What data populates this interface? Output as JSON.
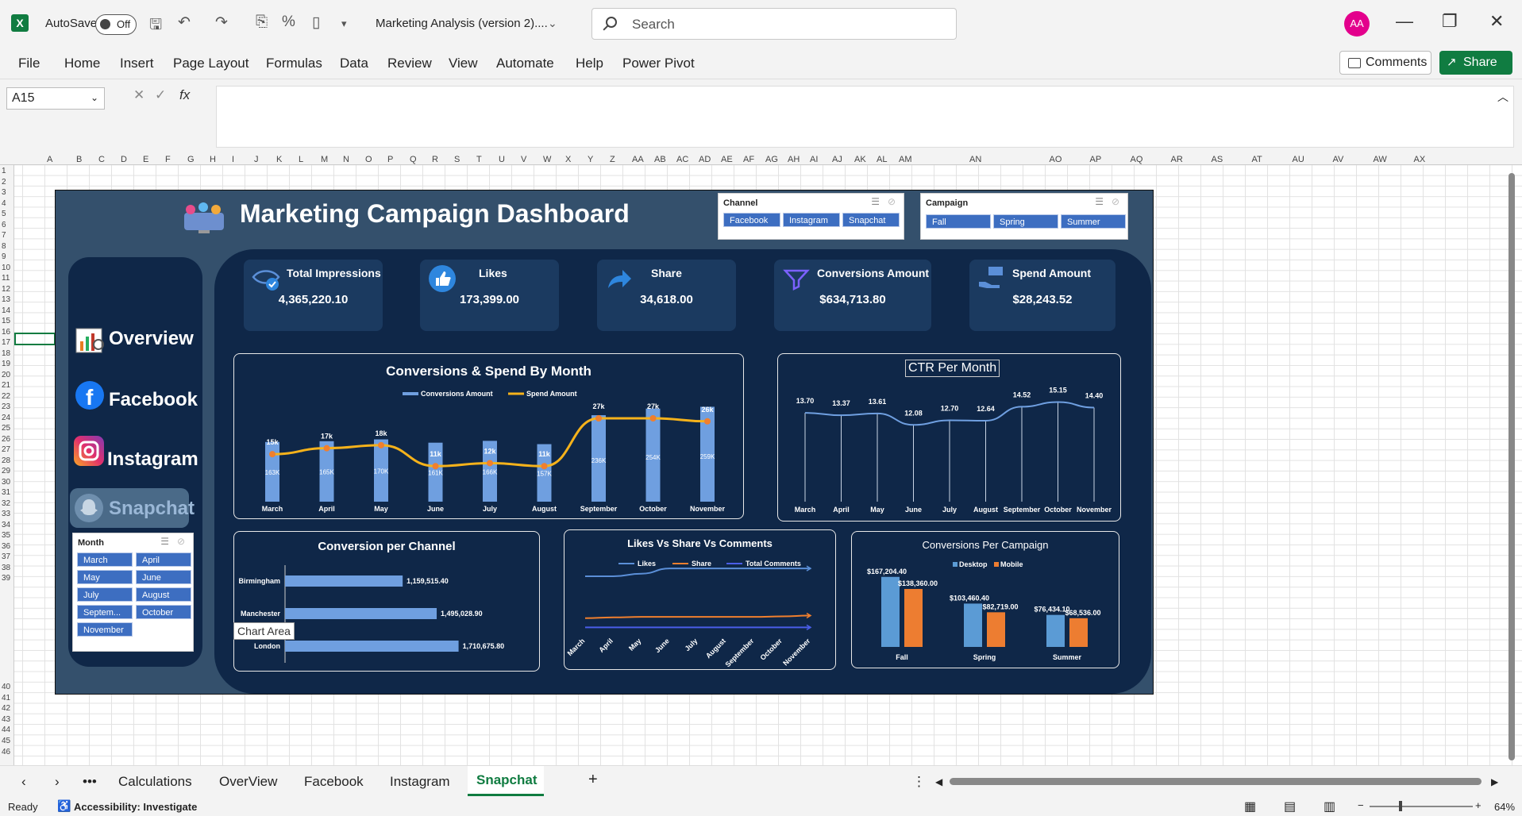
{
  "app": {
    "autosave_label": "AutoSave",
    "autosave_state": "Off",
    "doc_title": "Marketing Analysis (version 2)....",
    "search_placeholder": "Search",
    "user_initials": "AA"
  },
  "ribbon": {
    "tabs": [
      "File",
      "Home",
      "Insert",
      "Page Layout",
      "Formulas",
      "Data",
      "Review",
      "View",
      "Automate",
      "Help",
      "Power Pivot"
    ],
    "comments": "Comments",
    "share": "Share"
  },
  "formula": {
    "name_box": "A15",
    "fx": "fx",
    "value": ""
  },
  "columns": [
    "A",
    "B",
    "C",
    "D",
    "E",
    "F",
    "G",
    "H",
    "I",
    "J",
    "K",
    "L",
    "M",
    "N",
    "O",
    "P",
    "Q",
    "R",
    "S",
    "T",
    "U",
    "V",
    "W",
    "X",
    "Y",
    "Z",
    "AA",
    "AB",
    "AC",
    "AD",
    "AE",
    "AF",
    "AG",
    "AH",
    "AI",
    "AJ",
    "AK",
    "AL",
    "AM",
    "AN",
    "AO",
    "AP",
    "AQ",
    "AR",
    "AS",
    "AT",
    "AU",
    "AV",
    "AW",
    "AX"
  ],
  "dashboard": {
    "title": "Marketing Campaign Dashboard",
    "nav": [
      "Overview",
      "Facebook",
      "Instagram",
      "Snapchat"
    ],
    "kpis": [
      {
        "label": "Total Impressions",
        "value": "4,365,220.10"
      },
      {
        "label": "Likes",
        "value": "173,399.00"
      },
      {
        "label": "Share",
        "value": "34,618.00"
      },
      {
        "label": "Conversions Amount",
        "value": "$634,713.80"
      },
      {
        "label": "Spend Amount",
        "value": "$28,243.52"
      }
    ],
    "slicers": {
      "channel": {
        "title": "Channel",
        "items": [
          "Facebook",
          "Instagram",
          "Snapchat"
        ]
      },
      "campaign": {
        "title": "Campaign",
        "items": [
          "Fall",
          "Spring",
          "Summer"
        ]
      },
      "month": {
        "title": "Month",
        "items": [
          "March",
          "April",
          "May",
          "June",
          "July",
          "August",
          "Septem...",
          "October",
          "November"
        ]
      }
    },
    "tooltip": "Chart Area"
  },
  "chart_data": [
    {
      "type": "bar",
      "title": "Conversions & Spend By Month",
      "categories": [
        "March",
        "April",
        "May",
        "June",
        "July",
        "August",
        "September",
        "October",
        "November"
      ],
      "series": [
        {
          "name": "Conversions Amount",
          "type": "bar",
          "values": [
            163,
            165,
            170,
            161,
            166,
            157,
            236,
            254,
            259
          ],
          "labels": [
            "163K",
            "165K",
            "170K",
            "161K",
            "166K",
            "157K",
            "236K",
            "254K",
            "259K"
          ]
        },
        {
          "name": "Spend Amount",
          "type": "line",
          "values": [
            15,
            17,
            18,
            11,
            12,
            11,
            27,
            27,
            26
          ],
          "labels": [
            "15k",
            "17k",
            "18k",
            "11k",
            "12k",
            "11k",
            "27k",
            "27k",
            "26k"
          ]
        }
      ],
      "colors": {
        "bar": "#6f9fe0",
        "line": "#f5b21b",
        "marker": "#f07f2e"
      }
    },
    {
      "type": "line",
      "title": "CTR Per Month",
      "categories": [
        "March",
        "April",
        "May",
        "June",
        "July",
        "August",
        "September",
        "October",
        "November"
      ],
      "series": [
        {
          "name": "CTR",
          "values": [
            13.7,
            13.37,
            13.61,
            12.08,
            12.7,
            12.64,
            14.52,
            15.15,
            14.4
          ],
          "labels": [
            "13.70",
            "13.37",
            "13.61",
            "12.08",
            "12.70",
            "12.64",
            "14.52",
            "15.15",
            "14.40"
          ]
        }
      ]
    },
    {
      "type": "bar",
      "orientation": "horizontal",
      "title": "Conversion per Channel",
      "categories": [
        "Birmingham",
        "Manchester",
        "London"
      ],
      "series": [
        {
          "name": "Conversions",
          "values": [
            1159515.4,
            1495028.9,
            1710675.8
          ],
          "labels": [
            "1,159,515.40",
            "1,495,028.90",
            "1,710,675.80"
          ]
        }
      ]
    },
    {
      "type": "line",
      "title": "Likes Vs Share Vs Comments",
      "categories": [
        "March",
        "April",
        "May",
        "June",
        "July",
        "August",
        "September",
        "October",
        "November"
      ],
      "series": [
        {
          "name": "Likes",
          "color": "#5b8fd8",
          "values": [
            20,
            20,
            21,
            23,
            23,
            23,
            23,
            23,
            23
          ]
        },
        {
          "name": "Share",
          "color": "#f07f2e",
          "values": [
            4,
            4.3,
            4.5,
            4.5,
            4.5,
            4.5,
            4.5,
            4.7,
            5
          ]
        },
        {
          "name": "Total Comments",
          "color": "#4a5ee8",
          "values": [
            0.5,
            0.5,
            0.5,
            0.5,
            0.5,
            0.5,
            0.5,
            0.5,
            0.5
          ]
        }
      ]
    },
    {
      "type": "bar",
      "title": "Conversions Per Campaign",
      "categories": [
        "Fall",
        "Spring",
        "Summer"
      ],
      "series": [
        {
          "name": "Desktop",
          "color": "#5b9bd5",
          "values": [
            167204.4,
            103460.4,
            76434.1
          ],
          "labels": [
            "$167,204.40",
            "$103,460.40",
            "$76,434.10"
          ]
        },
        {
          "name": "Mobile",
          "color": "#ed7d31",
          "values": [
            138360.0,
            82719.0,
            68536.0
          ],
          "labels": [
            "$138,360.00",
            "$82,719.00",
            "$68,536.00"
          ]
        }
      ]
    }
  ],
  "sheets": {
    "tabs": [
      "Calculations",
      "OverView",
      "Facebook",
      "Instagram",
      "Snapchat"
    ],
    "active": "Snapchat"
  },
  "status": {
    "ready": "Ready",
    "accessibility": "Accessibility: Investigate",
    "zoom": "64%"
  }
}
